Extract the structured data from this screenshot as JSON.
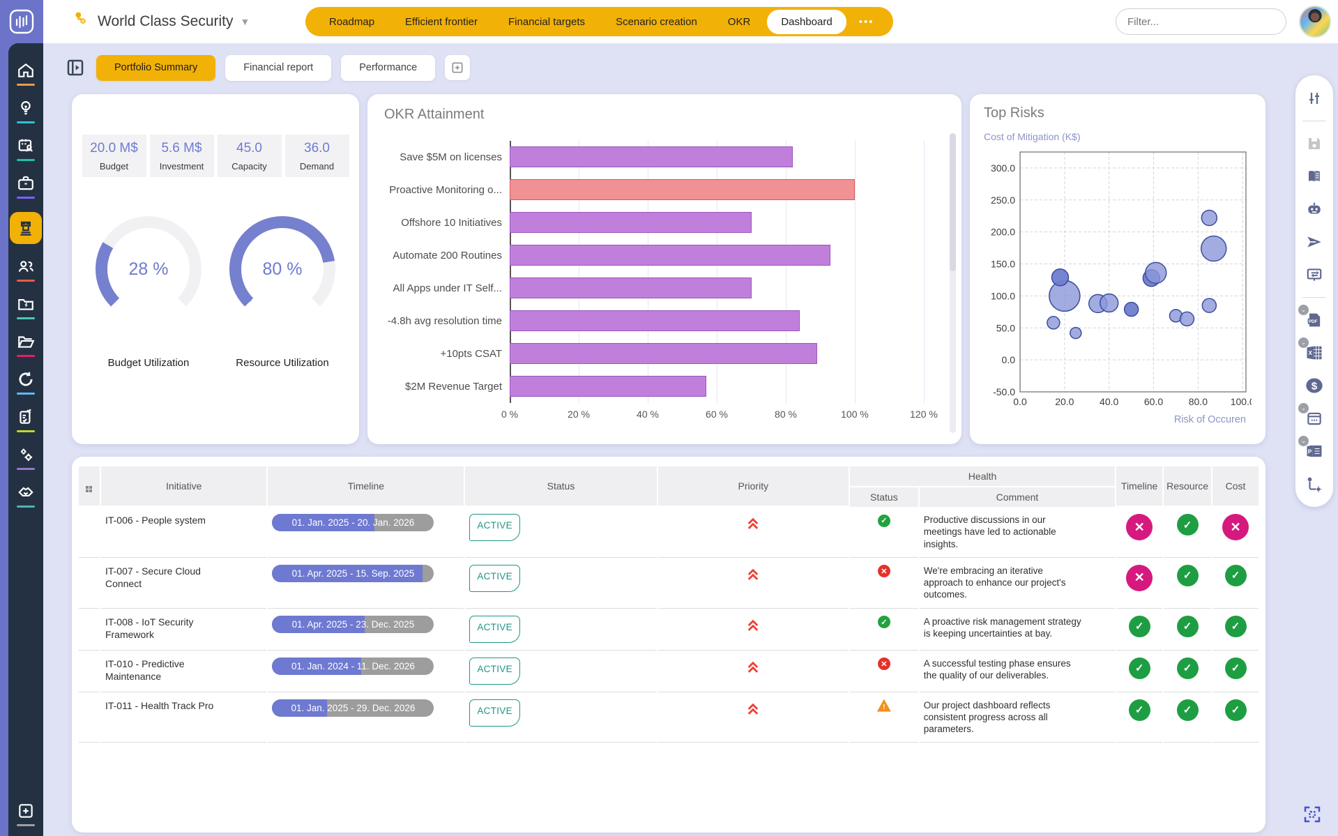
{
  "header": {
    "workspace": {
      "title": "World Class Security"
    },
    "nav_tabs": [
      "Roadmap",
      "Efficient frontier",
      "Financial targets",
      "Scenario creation",
      "OKR",
      "Dashboard"
    ],
    "active_nav_tab": "Dashboard",
    "more_dots": "•••",
    "filter": {
      "placeholder": "Filter..."
    }
  },
  "subtabs": {
    "items": [
      "Portfolio Summary",
      "Financial report",
      "Performance"
    ],
    "active": "Portfolio Summary",
    "add_label": "+"
  },
  "left_sidebar": {
    "icons": [
      "home",
      "idea",
      "resource-planning",
      "portfolio",
      "initiatives",
      "people",
      "projects-bolt",
      "files",
      "refresh",
      "tasks",
      "settings",
      "partners",
      "add-new"
    ],
    "active_icon": "initiatives",
    "underline_colors": [
      "#F2994A",
      "#2EC5CE",
      "#1FC0A7",
      "#7B61FF",
      "",
      "#E85C41",
      "#4DC8B8",
      "#E91E63",
      "#64B5F6",
      "#C0D62F",
      "#9575CD",
      "#4DB6AC",
      "#9E9E9E"
    ]
  },
  "right_sidebar": {
    "icons": [
      "sliders",
      "save",
      "book",
      "assistant-robot",
      "send",
      "presentation",
      "export-pdf",
      "export-excel",
      "finance-dollar",
      "export-calendar",
      "export-slides",
      "workflow-settings"
    ]
  },
  "kpis": {
    "metrics": [
      {
        "value": "20.0 M$",
        "label": "Budget"
      },
      {
        "value": "5.6 M$",
        "label": "Investment"
      },
      {
        "value": "45.0",
        "label": "Capacity"
      },
      {
        "value": "36.0",
        "label": "Demand"
      }
    ],
    "gauges": [
      {
        "value": 28,
        "display": "28 %",
        "label": "Budget Utilization"
      },
      {
        "value": 80,
        "display": "80 %",
        "label": "Resource Utilization"
      }
    ],
    "gauge_color": "#7580CE",
    "gauge_track": "#f1f1f4"
  },
  "chart_data": [
    {
      "type": "bar",
      "orientation": "horizontal",
      "title": "OKR Attainment",
      "categories": [
        "Save $5M on licenses",
        "Proactive Monitoring o...",
        "Offshore 10 Initiatives",
        "Automate 200 Routines",
        "All Apps under IT Self...",
        "-4.8h avg resolution time",
        "+10pts CSAT",
        "$2M Revenue Target"
      ],
      "values": [
        82,
        100,
        70,
        93,
        70,
        84,
        89,
        57
      ],
      "unit": "%",
      "xlim": [
        0,
        120
      ],
      "xtick_labels": [
        "0 %",
        "20 %",
        "40 %",
        "60 %",
        "80 %",
        "100 %",
        "120 %"
      ],
      "bar_color": "#C07FDB",
      "bar_border": "#9C53BE",
      "highlight": {
        "index": 1,
        "color": "#F09193",
        "border": "#D4595C"
      },
      "grid": true,
      "legend": "none"
    },
    {
      "type": "scatter",
      "variant": "bubble",
      "title": "Top Risks",
      "ylabel": "Cost of Mitigation (K$)",
      "xlabel": "Risk of Occuren",
      "xlim": [
        0,
        101.5
      ],
      "ylim": [
        -50,
        325
      ],
      "xtick_values": [
        0,
        20,
        40,
        60,
        80,
        100
      ],
      "xtick_labels": [
        "0.0",
        "20.0",
        "40.0",
        "60.0",
        "80.0",
        "100.0"
      ],
      "ytick_values": [
        300,
        250,
        200,
        150,
        100,
        50,
        0,
        -50
      ],
      "ytick_labels": [
        "300.0",
        "250.0",
        "200.0",
        "150.0",
        "100.0",
        "50.0",
        "0.0",
        "-50.0"
      ],
      "grid": "dashed",
      "bubble_fill": "#8B97D9",
      "bubble_fill_dark": "#6F7ED0",
      "bubble_stroke": "#3D4D9A",
      "points": [
        {
          "x": 15,
          "y": 58,
          "r": 9
        },
        {
          "x": 20,
          "y": 100,
          "r": 22
        },
        {
          "x": 18,
          "y": 129,
          "r": 12,
          "shade": "dark"
        },
        {
          "x": 25,
          "y": 42,
          "r": 8
        },
        {
          "x": 35,
          "y": 88,
          "r": 13
        },
        {
          "x": 40,
          "y": 89,
          "r": 13
        },
        {
          "x": 50,
          "y": 79,
          "r": 10,
          "shade": "dark"
        },
        {
          "x": 59,
          "y": 128,
          "r": 12,
          "shade": "dark"
        },
        {
          "x": 61,
          "y": 136,
          "r": 15
        },
        {
          "x": 70,
          "y": 69,
          "r": 9
        },
        {
          "x": 75,
          "y": 64,
          "r": 10
        },
        {
          "x": 85,
          "y": 85,
          "r": 10
        },
        {
          "x": 85,
          "y": 222,
          "r": 11
        },
        {
          "x": 87,
          "y": 174,
          "r": 18
        }
      ]
    }
  ],
  "table": {
    "group_header": {
      "health": "Health"
    },
    "columns": {
      "initiative": "Initiative",
      "timeline": "Timeline",
      "status": "Status",
      "priority": "Priority",
      "health_status": "Status",
      "comment": "Comment",
      "h_timeline": "Timeline",
      "resource": "Resource",
      "cost": "Cost"
    },
    "rows": [
      {
        "initiative": "IT-006 - People system",
        "timeline": "01. Jan. 2025 - 20. Jan. 2026",
        "timeline_progress": 63,
        "status": "ACTIVE",
        "priority": "highest",
        "health": "good",
        "comment": "Productive discussions in our meetings have led to actionable insights.",
        "indicators": {
          "timeline": "bad",
          "resource": "good",
          "cost": "bad"
        }
      },
      {
        "initiative": "IT-007 - Secure Cloud Connect",
        "timeline": "01. Apr. 2025 - 15. Sep. 2025",
        "timeline_progress": 93,
        "status": "ACTIVE",
        "priority": "highest",
        "health": "bad",
        "comment": "We're embracing an iterative approach to enhance our project's outcomes.",
        "indicators": {
          "timeline": "bad",
          "resource": "good",
          "cost": "good"
        }
      },
      {
        "initiative": "IT-008 - IoT Security Framework",
        "timeline": "01. Apr. 2025 - 23. Dec. 2025",
        "timeline_progress": 57,
        "status": "ACTIVE",
        "priority": "highest",
        "health": "good",
        "comment": "A proactive risk management strategy is keeping uncertainties at bay.",
        "indicators": {
          "timeline": "good",
          "resource": "good",
          "cost": "good"
        }
      },
      {
        "initiative": "IT-010 - Predictive Maintenance",
        "timeline": "01. Jan. 2024 - 11. Dec. 2026",
        "timeline_progress": 55,
        "status": "ACTIVE",
        "priority": "highest",
        "health": "bad",
        "comment": "A successful testing phase ensures the quality of our deliverables.",
        "indicators": {
          "timeline": "good",
          "resource": "good",
          "cost": "good"
        }
      },
      {
        "initiative": "IT-011 - Health Track Pro",
        "timeline": "01. Jan. 2025 - 29. Dec. 2026",
        "timeline_progress": 34,
        "status": "ACTIVE",
        "priority": "highest",
        "health": "warn",
        "comment": "Our project dashboard reflects consistent progress across all parameters.",
        "indicators": {
          "timeline": "good",
          "resource": "good",
          "cost": "good"
        }
      }
    ]
  },
  "colors": {
    "brand_yellow": "#F2B106",
    "brand_purple": "#6B74C9",
    "sidebar_navy": "#243142",
    "accent_purple": "#6F7BD0",
    "status_good": "#1E9E43",
    "status_bad_circle": "#E53229",
    "status_warn": "#F2901D",
    "indicator_bad_pink": "#D6197E",
    "active_badge_teal": "#1D9688",
    "priority_red": "#EF4136"
  }
}
